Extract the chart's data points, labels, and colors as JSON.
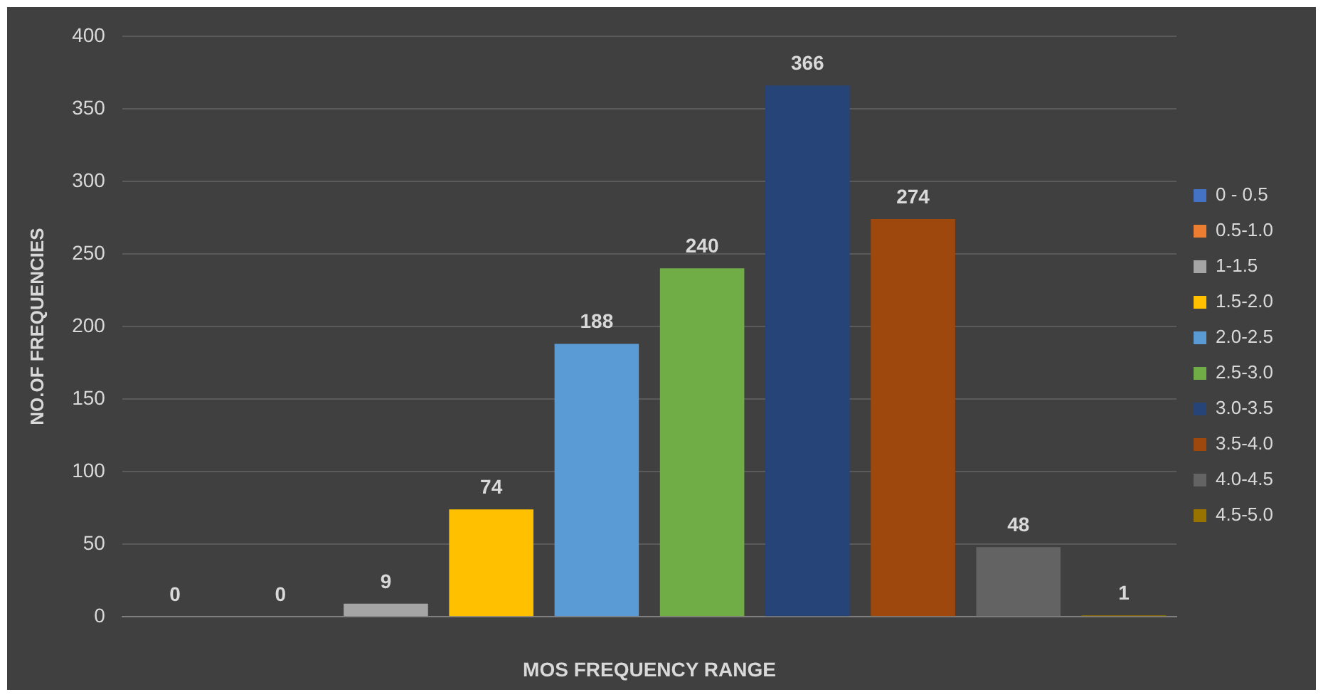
{
  "chart_data": {
    "type": "bar",
    "xlabel": "MOS FREQUENCY RANGE",
    "ylabel": "NO.OF FREQUENCIES",
    "categories": [
      null,
      null,
      null,
      null,
      null,
      null,
      null,
      null,
      null,
      null
    ],
    "series": [
      {
        "name": "0 - 0.5",
        "color": "#4472c4",
        "values": [
          0,
          null,
          null,
          null,
          null,
          null,
          null,
          null,
          null,
          null
        ]
      },
      {
        "name": "0.5-1.0",
        "color": "#ed7d31",
        "values": [
          null,
          0,
          null,
          null,
          null,
          null,
          null,
          null,
          null,
          null
        ]
      },
      {
        "name": "1-1.5",
        "color": "#a5a5a5",
        "values": [
          null,
          null,
          9,
          null,
          null,
          null,
          null,
          null,
          null,
          null
        ]
      },
      {
        "name": "1.5-2.0",
        "color": "#ffc000",
        "values": [
          null,
          null,
          null,
          74,
          null,
          null,
          null,
          null,
          null,
          null
        ]
      },
      {
        "name": "2.0-2.5",
        "color": "#5b9bd5",
        "values": [
          null,
          null,
          null,
          null,
          188,
          null,
          null,
          null,
          null,
          null
        ]
      },
      {
        "name": "2.5-3.0",
        "color": "#70ad47",
        "values": [
          null,
          null,
          null,
          null,
          null,
          240,
          null,
          null,
          null,
          null
        ]
      },
      {
        "name": "3.0-3.5",
        "color": "#264478",
        "values": [
          null,
          null,
          null,
          null,
          null,
          null,
          366,
          null,
          null,
          null
        ]
      },
      {
        "name": "3.5-4.0",
        "color": "#9e480e",
        "values": [
          null,
          null,
          null,
          null,
          null,
          null,
          null,
          274,
          null,
          null
        ]
      },
      {
        "name": "4.0-4.5",
        "color": "#636363",
        "values": [
          null,
          null,
          null,
          null,
          null,
          null,
          null,
          null,
          48,
          null
        ]
      },
      {
        "name": "4.5-5.0",
        "color": "#997300",
        "values": [
          null,
          null,
          null,
          null,
          null,
          null,
          null,
          null,
          null,
          1
        ]
      }
    ],
    "ylim": [
      0,
      400
    ],
    "yticks": [
      0,
      50,
      100,
      150,
      200,
      250,
      300,
      350,
      400
    ],
    "grid": "y",
    "legend": "right",
    "data_labels": true
  }
}
